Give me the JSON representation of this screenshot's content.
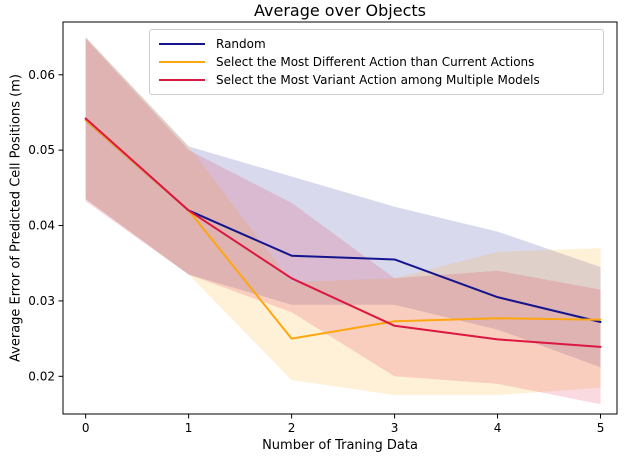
{
  "chart_data": {
    "type": "line",
    "title": "Average over Objects",
    "xlabel": "Number of Traning Data",
    "ylabel": "Average Error of Predicted Cell Positions (m)",
    "x": [
      0,
      1,
      2,
      3,
      4,
      5
    ],
    "xticks": [
      0,
      1,
      2,
      3,
      4,
      5
    ],
    "yticks": [
      0.02,
      0.03,
      0.04,
      0.05,
      0.06
    ],
    "xlim": [
      -0.22,
      5.16
    ],
    "ylim": [
      0.015,
      0.067
    ],
    "grid": false,
    "legend_position": "upper center",
    "band_alpha": 0.16,
    "series": [
      {
        "name": "Random",
        "color": "#14148c",
        "values": [
          0.054,
          0.042,
          0.036,
          0.0355,
          0.0305,
          0.0272
        ],
        "upper": [
          0.065,
          0.0505,
          0.0465,
          0.0425,
          0.0392,
          0.0345
        ],
        "lower": [
          0.0435,
          0.0335,
          0.0295,
          0.0295,
          0.0262,
          0.0212
        ]
      },
      {
        "name": "Select the Most Different Action than Current Actions",
        "color": "#ffa60e",
        "values": [
          0.054,
          0.042,
          0.025,
          0.0273,
          0.0277,
          0.0275
        ],
        "upper": [
          0.065,
          0.0505,
          0.0325,
          0.033,
          0.0365,
          0.037
        ],
        "lower": [
          0.0435,
          0.0335,
          0.0195,
          0.0175,
          0.0175,
          0.0185
        ]
      },
      {
        "name": "Select the Most Variant Action among Multiple Models",
        "color": "#dc1740",
        "values": [
          0.0542,
          0.042,
          0.033,
          0.0267,
          0.0249,
          0.0239
        ],
        "upper": [
          0.0648,
          0.05,
          0.043,
          0.033,
          0.034,
          0.0315
        ],
        "lower": [
          0.0432,
          0.0335,
          0.0285,
          0.02,
          0.019,
          0.0163
        ]
      }
    ]
  }
}
